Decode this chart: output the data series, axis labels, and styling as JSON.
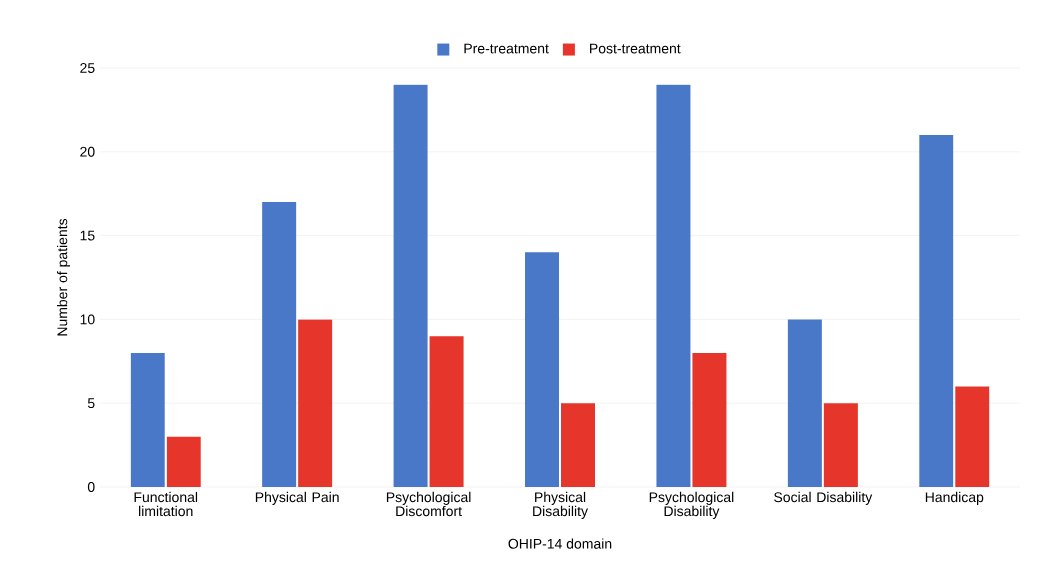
{
  "chart_data": {
    "type": "bar",
    "xlabel": "OHIP-14 domain",
    "ylabel": "Number of patients",
    "categories": [
      "Functional limitation",
      "Physical Pain",
      "Psychological Discomfort",
      "Physical Disability",
      "Psychological Disability",
      "Social Disability",
      "Handicap"
    ],
    "series": [
      {
        "name": "Pre-treatment",
        "color": "#4a78c8",
        "values": [
          8,
          17,
          24,
          14,
          24,
          10,
          21
        ]
      },
      {
        "name": "Post-treatment",
        "color": "#e6352b",
        "values": [
          3,
          10,
          9,
          5,
          8,
          5,
          6
        ]
      }
    ],
    "ylim": [
      0,
      25
    ],
    "yticks": [
      0,
      5,
      10,
      15,
      20,
      25
    ],
    "grid": "y",
    "legend": "top"
  }
}
